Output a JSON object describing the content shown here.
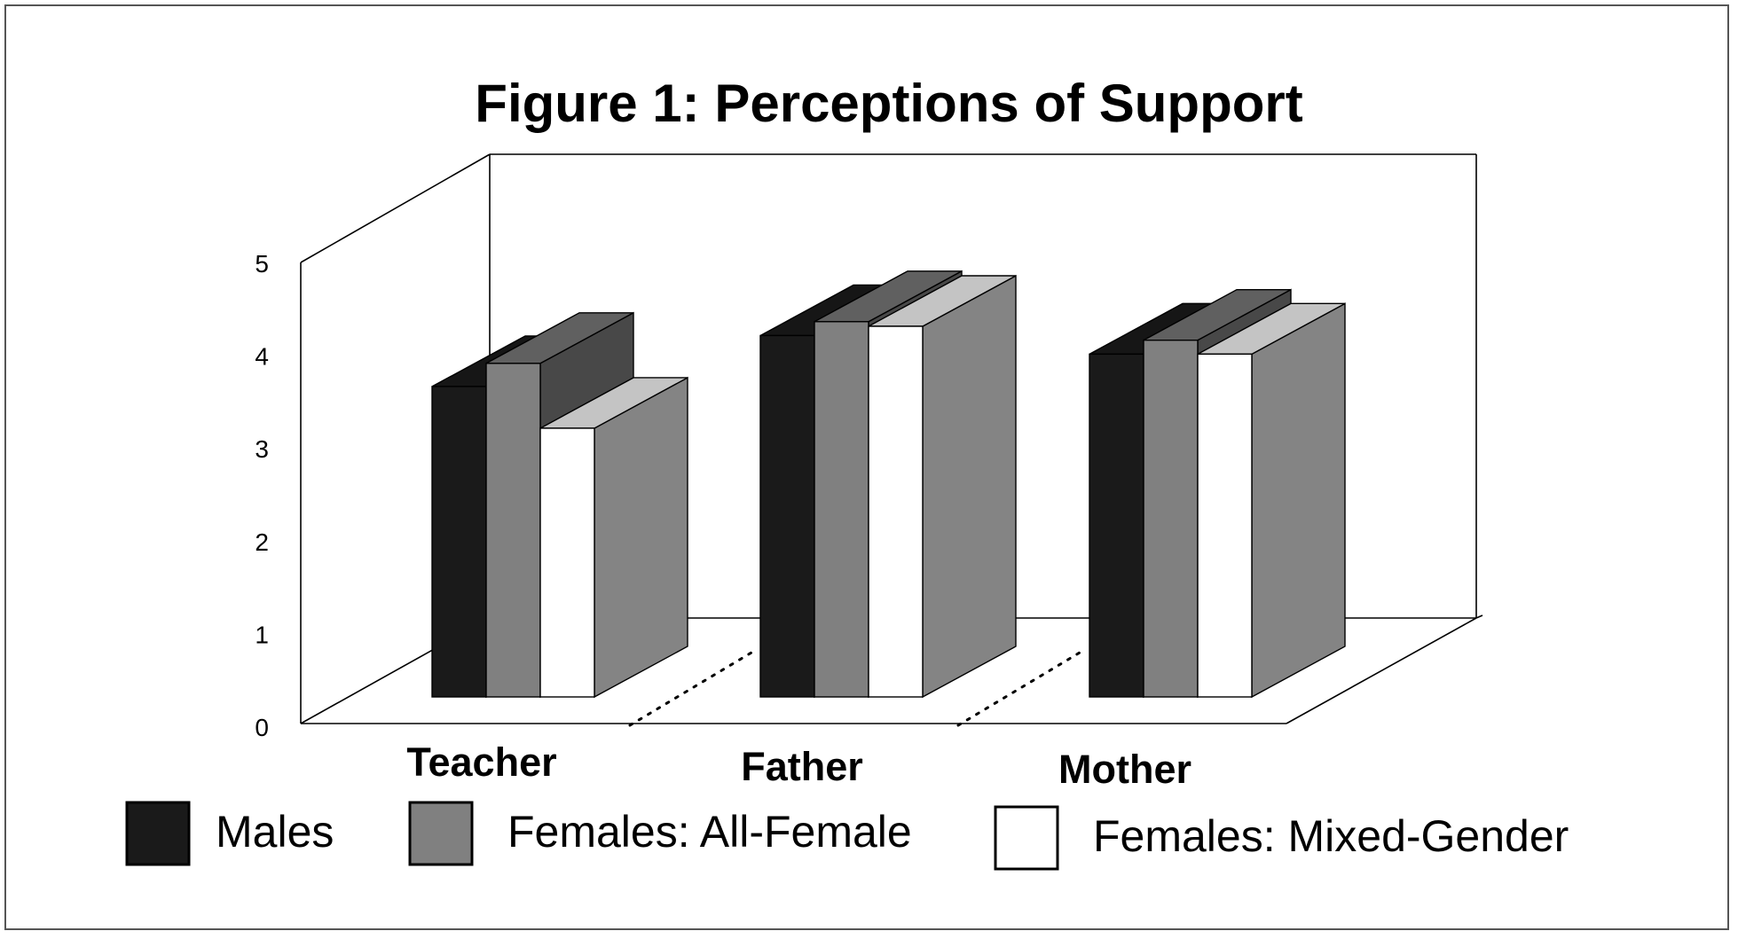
{
  "chart_data": {
    "type": "bar",
    "title": "Figure 1: Perceptions of Support",
    "xlabel": "",
    "ylabel": "",
    "ylim": [
      0,
      5
    ],
    "y_ticks": [
      "0",
      "1",
      "2",
      "3",
      "4",
      "5"
    ],
    "categories": [
      "Teacher",
      "Father",
      "Mother"
    ],
    "series": [
      {
        "name": "Males",
        "values": [
          3.35,
          3.9,
          3.7
        ]
      },
      {
        "name": "Females: All-Female",
        "values": [
          3.6,
          4.05,
          3.85
        ]
      },
      {
        "name": "Females: Mixed-Gender",
        "values": [
          2.9,
          4.0,
          3.7
        ]
      }
    ],
    "projection": "3d",
    "grid": false,
    "legend_position": "bottom",
    "colors": {
      "series_front": [
        "#1a1a1a",
        "#808080",
        "#ffffff"
      ],
      "series_top": [
        "#161616",
        "#606060",
        "#c4c4c4"
      ],
      "series_side": [
        "#141414",
        "#484848",
        "#848484"
      ],
      "axis": "#000000",
      "frame": "#555555"
    }
  }
}
